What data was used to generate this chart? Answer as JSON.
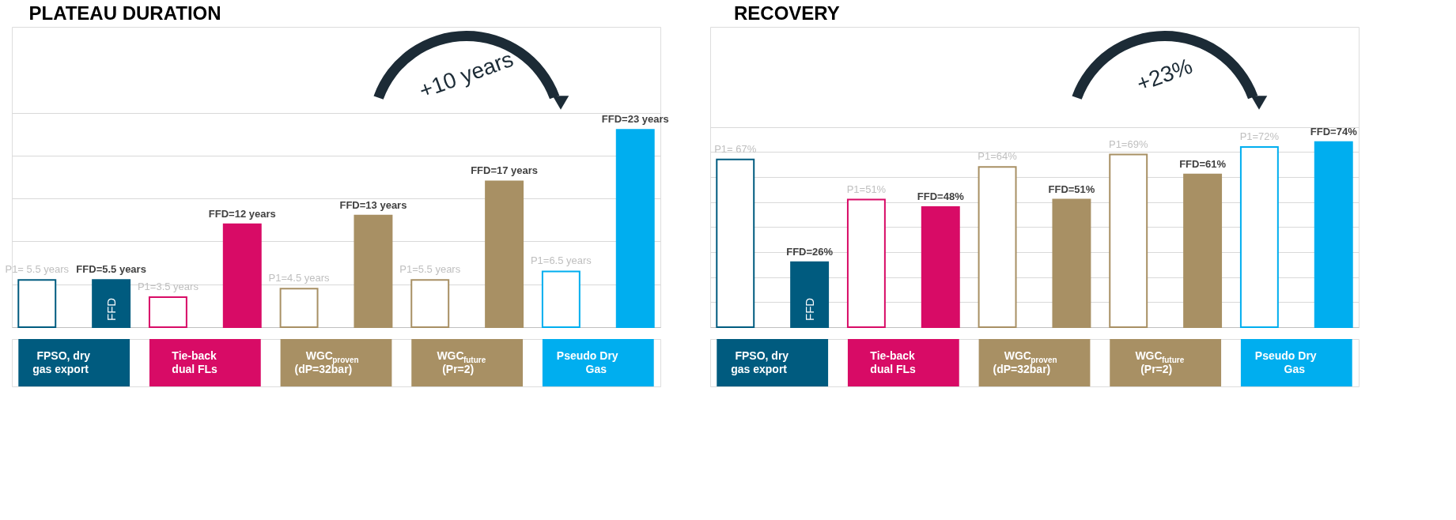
{
  "chart_data": [
    {
      "type": "bar",
      "title": "PLATEAU DURATION",
      "categories": [
        "FPSO, dry\ngas export",
        "Tie-back\ndual FLs",
        "WGC$_{proven}$\n(dP=32bar)",
        "WGC$_{future}$\n(Pr=2)",
        "Pseudo Dry\nGas"
      ],
      "series": [
        {
          "colors": [
            "#005b7f",
            "#d80b66",
            "#a89064",
            "#a89064",
            "#00aeef"
          ],
          "values": [
            5.5,
            3.5,
            4.5,
            5.5,
            6.5
          ],
          "value_labels": [
            "P1= 5.5 years",
            "P1=3.5 years",
            "P1=4.5 years",
            "P1=5.5 years",
            "P1=6.5 years"
          ]
        },
        {
          "name": "FFD",
          "colors": [
            "#005b7f",
            "#d80b66",
            "#a89064",
            "#a89064",
            "#00aeef"
          ],
          "values": [
            5.5,
            12,
            13,
            17,
            23
          ],
          "value_labels": [
            "FFD=5.5 years",
            "FFD=12 years",
            "FFD=13 years",
            "FFD=17 years",
            "FFD=23 years"
          ]
        }
      ],
      "ylim": [
        0,
        35
      ],
      "yticks": [
        {
          "value": 5,
          "label": null
        },
        {
          "value": 10,
          "label": null
        },
        {
          "value": 15,
          "label": null
        },
        {
          "value": 20,
          "label": null
        },
        {
          "value": 25,
          "label": null
        }
      ],
      "grid": "y",
      "tick_labels": "x",
      "legend": false,
      "annotations": [
        "+10 years"
      ]
    },
    {
      "type": "bar",
      "title": "RECOVERY",
      "categories": [
        "FPSO, dry\ngas export",
        "Tie-back\ndual FLs",
        "WGC$_{proven}$\n(dP=32bar)",
        "WGC$_{future}$\n(Pr=2)",
        "Pseudo Dry\nGas"
      ],
      "series": [
        {
          "colors": [
            "#005b7f",
            "#d80b66",
            "#a89064",
            "#a89064",
            "#00aeef"
          ],
          "values": [
            67,
            51,
            64,
            69,
            72
          ],
          "value_labels": [
            "P1= 67%",
            "P1=51%",
            "P1=64%",
            "P1=69%",
            "P1=72%"
          ]
        },
        {
          "name": "FFD",
          "colors": [
            "#005b7f",
            "#d80b66",
            "#a89064",
            "#a89064",
            "#00aeef"
          ],
          "values": [
            26,
            48,
            51,
            61,
            74
          ],
          "value_labels": [
            "FFD=26%",
            "FFD=48%",
            "FFD=51%",
            "FFD=61%",
            "FFD=74%"
          ]
        }
      ],
      "ylim": [
        0,
        120
      ],
      "yticks": [
        {
          "value": 10,
          "label": null
        },
        {
          "value": 20,
          "label": null
        },
        {
          "value": 30,
          "label": null
        },
        {
          "value": 40,
          "label": null
        },
        {
          "value": 50,
          "label": null
        },
        {
          "value": 60,
          "label": null
        },
        {
          "value": 70,
          "label": null
        },
        {
          "value": 80,
          "label": null
        }
      ],
      "grid": "y",
      "tick_labels": "x",
      "legend": false,
      "annotations": [
        "+23%"
      ]
    }
  ]
}
